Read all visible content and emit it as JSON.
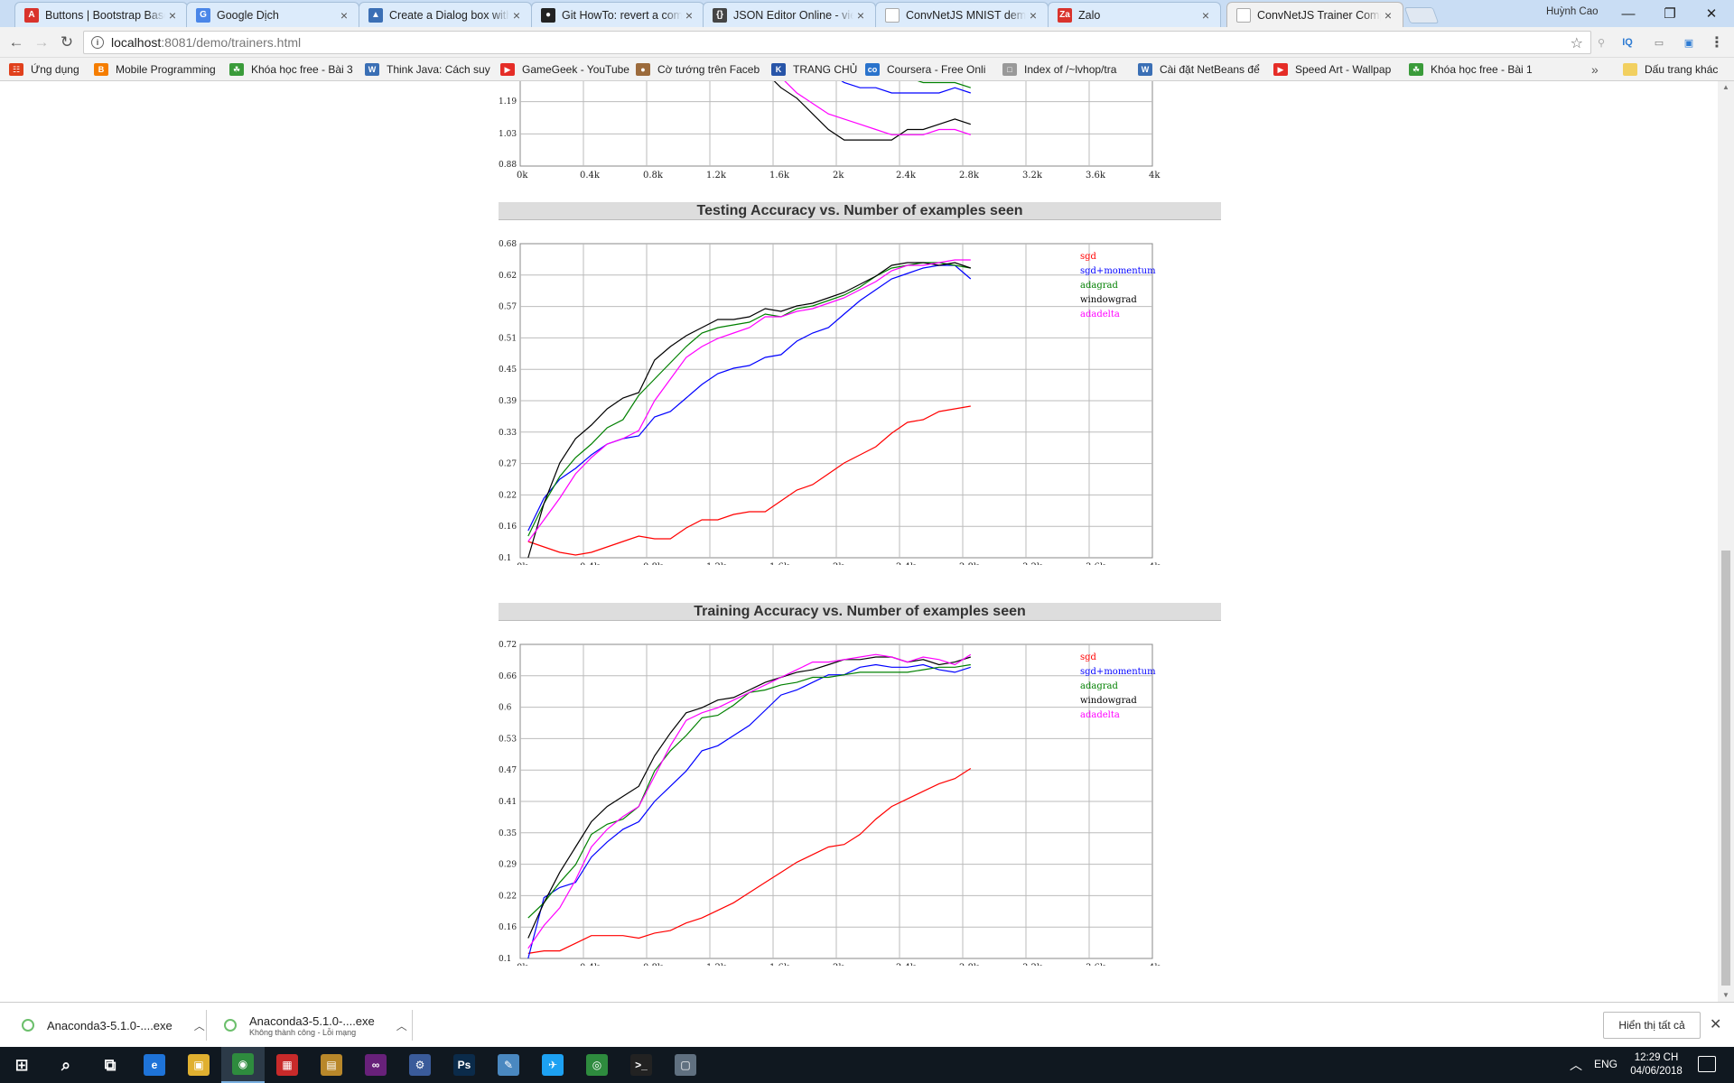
{
  "browser": {
    "tabs": [
      {
        "title": "Buttons | Bootstrap Based",
        "icon": "A",
        "color": "#d9332c"
      },
      {
        "title": "Google Dịch",
        "icon": "G",
        "color": "#4a86e8"
      },
      {
        "title": "Create a Dialog box with",
        "icon": "▲",
        "color": "#3b6fb5"
      },
      {
        "title": "Git HowTo: revert a comm",
        "icon": "●",
        "color": "#222222"
      },
      {
        "title": "JSON Editor Online - view",
        "icon": "{}",
        "color": "#444444"
      },
      {
        "title": "ConvNetJS MNIST demo",
        "icon": "",
        "color": "#ffffff"
      },
      {
        "title": "Zalo",
        "icon": "Za",
        "color": "#d9332c"
      },
      {
        "title": "ConvNetJS Trainer Comp",
        "icon": "",
        "color": "#ffffff"
      }
    ],
    "profile_name": "Huỳnh Cao",
    "url_host": "localhost",
    "url_rest": ":8081/demo/trainers.html",
    "bookmarks": [
      {
        "label": "Ứng dụng",
        "color": "#e0401c",
        "icon": "☷"
      },
      {
        "label": "Mobile Programming",
        "color": "#f57d00",
        "icon": "B"
      },
      {
        "label": "Khóa học free - Bài 3",
        "color": "#3a9b3a",
        "icon": "☘"
      },
      {
        "label": "Think Java: Cách suy",
        "color": "#3a6fb5",
        "icon": "W"
      },
      {
        "label": "GameGeek - YouTube",
        "color": "#e52d27",
        "icon": "▶"
      },
      {
        "label": "Cờ tướng trên Faceb",
        "color": "#9c6b3c",
        "icon": "●"
      },
      {
        "label": "TRANG CHỦ",
        "color": "#2855a8",
        "icon": "K"
      },
      {
        "label": "Coursera - Free Onli",
        "color": "#2a73cc",
        "icon": "co"
      },
      {
        "label": "Index of /~lvhop/tra",
        "color": "#999999",
        "icon": "□"
      },
      {
        "label": "Cài đặt NetBeans để",
        "color": "#3a6fb5",
        "icon": "W"
      },
      {
        "label": "Speed Art - Wallpap",
        "color": "#e52d27",
        "icon": "▶"
      },
      {
        "label": "Khóa học free - Bài 1",
        "color": "#3a9b3a",
        "icon": "☘"
      }
    ],
    "bookmarks_more": "»",
    "other_bookmarks": "Dấu trang khác"
  },
  "charts": {
    "legend": [
      {
        "label": "sgd",
        "color": "#ff0000"
      },
      {
        "label": "sgd+momentum",
        "color": "#0000ff"
      },
      {
        "label": "adagrad",
        "color": "#008000"
      },
      {
        "label": "windowgrad",
        "color": "#000000"
      },
      {
        "label": "adadelta",
        "color": "#ff00ff"
      }
    ],
    "x_ticks": [
      "0k",
      "0.4k",
      "0.8k",
      "1.2k",
      "1.6k",
      "2k",
      "2.4k",
      "2.8k",
      "3.2k",
      "3.6k",
      "4k"
    ],
    "loss": {
      "y_ticks": [
        "1.19",
        "1.03",
        "0.88"
      ]
    },
    "testing": {
      "title": "Testing Accuracy vs. Number of examples seen",
      "y_ticks": [
        "0.68",
        "0.62",
        "0.57",
        "0.51",
        "0.45",
        "0.39",
        "0.33",
        "0.27",
        "0.22",
        "0.16",
        "0.1"
      ]
    },
    "training": {
      "title": "Training Accuracy vs. Number of examples seen",
      "y_ticks": [
        "0.72",
        "0.66",
        "0.6",
        "0.53",
        "0.47",
        "0.41",
        "0.35",
        "0.29",
        "0.22",
        "0.16",
        "0.1"
      ]
    }
  },
  "chart_data": [
    {
      "type": "line",
      "title": "",
      "xlabel": "",
      "ylabel": "",
      "xlim": [
        0,
        4000
      ],
      "ylim": [
        0.88,
        1.25
      ],
      "x": [
        1050,
        1150,
        1250,
        1350,
        1450,
        1550,
        1650,
        1750,
        1850,
        1950,
        2050,
        2150,
        2250,
        2350,
        2450,
        2550,
        2650,
        2750,
        2850
      ],
      "series": [
        {
          "name": "sgd+momentum",
          "values": [
            1.25,
            1.24,
            1.2,
            1.18,
            1.16,
            1.14,
            1.12,
            1.1,
            1.08,
            1.06,
            1.04,
            1.03,
            1.03,
            1.02,
            1.02,
            1.02,
            1.02,
            1.03,
            1.02
          ]
        },
        {
          "name": "adagrad",
          "values": [
            1.25,
            1.24,
            1.21,
            1.19,
            1.17,
            1.15,
            1.13,
            1.11,
            1.1,
            1.08,
            1.06,
            1.05,
            1.05,
            1.05,
            1.05,
            1.04,
            1.04,
            1.04,
            1.03
          ]
        },
        {
          "name": "windowgrad",
          "values": [
            1.2,
            1.18,
            1.15,
            1.12,
            1.09,
            1.06,
            1.03,
            1.01,
            0.98,
            0.95,
            0.93,
            0.93,
            0.93,
            0.93,
            0.95,
            0.95,
            0.96,
            0.97,
            0.96
          ]
        },
        {
          "name": "adadelta",
          "values": [
            1.25,
            1.21,
            1.18,
            1.15,
            1.12,
            1.09,
            1.05,
            1.02,
            1.0,
            0.98,
            0.97,
            0.96,
            0.95,
            0.94,
            0.94,
            0.94,
            0.95,
            0.95,
            0.94
          ]
        }
      ]
    },
    {
      "type": "line",
      "title": "Testing Accuracy vs. Number of examples seen",
      "xlabel": "",
      "ylabel": "",
      "xlim": [
        0,
        4000
      ],
      "ylim": [
        0.1,
        0.68
      ],
      "x": [
        50,
        150,
        250,
        350,
        450,
        550,
        650,
        750,
        850,
        950,
        1050,
        1150,
        1250,
        1350,
        1450,
        1550,
        1650,
        1750,
        1850,
        1950,
        2050,
        2150,
        2250,
        2350,
        2450,
        2550,
        2650,
        2750,
        2850
      ],
      "series": [
        {
          "name": "sgd",
          "values": [
            0.13,
            0.12,
            0.11,
            0.105,
            0.11,
            0.12,
            0.13,
            0.14,
            0.135,
            0.135,
            0.155,
            0.17,
            0.17,
            0.18,
            0.185,
            0.185,
            0.205,
            0.225,
            0.235,
            0.255,
            0.275,
            0.29,
            0.305,
            0.33,
            0.35,
            0.355,
            0.37,
            0.375,
            0.38
          ]
        },
        {
          "name": "sgd+momentum",
          "values": [
            0.15,
            0.21,
            0.245,
            0.265,
            0.29,
            0.31,
            0.32,
            0.325,
            0.36,
            0.37,
            0.395,
            0.42,
            0.44,
            0.45,
            0.455,
            0.47,
            0.475,
            0.5,
            0.515,
            0.525,
            0.55,
            0.575,
            0.595,
            0.615,
            0.625,
            0.635,
            0.64,
            0.64,
            0.615
          ]
        },
        {
          "name": "adagrad",
          "values": [
            0.14,
            0.2,
            0.25,
            0.285,
            0.31,
            0.34,
            0.355,
            0.4,
            0.43,
            0.46,
            0.49,
            0.515,
            0.525,
            0.53,
            0.535,
            0.55,
            0.545,
            0.56,
            0.565,
            0.575,
            0.585,
            0.6,
            0.62,
            0.635,
            0.64,
            0.645,
            0.645,
            0.64,
            0.635
          ]
        },
        {
          "name": "windowgrad",
          "values": [
            0.1,
            0.2,
            0.275,
            0.32,
            0.345,
            0.375,
            0.395,
            0.405,
            0.465,
            0.49,
            0.51,
            0.525,
            0.54,
            0.54,
            0.545,
            0.56,
            0.555,
            0.565,
            0.57,
            0.58,
            0.59,
            0.605,
            0.62,
            0.64,
            0.645,
            0.645,
            0.64,
            0.645,
            0.635
          ]
        },
        {
          "name": "adadelta",
          "values": [
            0.13,
            0.17,
            0.21,
            0.255,
            0.285,
            0.31,
            0.32,
            0.335,
            0.39,
            0.43,
            0.47,
            0.49,
            0.505,
            0.515,
            0.525,
            0.545,
            0.545,
            0.555,
            0.56,
            0.57,
            0.58,
            0.595,
            0.61,
            0.63,
            0.64,
            0.64,
            0.645,
            0.65,
            0.65
          ]
        }
      ]
    },
    {
      "type": "line",
      "title": "Training Accuracy vs. Number of examples seen",
      "xlabel": "",
      "ylabel": "",
      "xlim": [
        0,
        4000
      ],
      "ylim": [
        0.1,
        0.72
      ],
      "x": [
        50,
        150,
        250,
        350,
        450,
        550,
        650,
        750,
        850,
        950,
        1050,
        1150,
        1250,
        1350,
        1450,
        1550,
        1650,
        1750,
        1850,
        1950,
        2050,
        2150,
        2250,
        2350,
        2450,
        2550,
        2650,
        2750,
        2850
      ],
      "series": [
        {
          "name": "sgd",
          "values": [
            0.11,
            0.115,
            0.115,
            0.13,
            0.145,
            0.145,
            0.145,
            0.14,
            0.15,
            0.155,
            0.17,
            0.18,
            0.195,
            0.21,
            0.23,
            0.25,
            0.27,
            0.29,
            0.305,
            0.32,
            0.325,
            0.345,
            0.375,
            0.4,
            0.415,
            0.43,
            0.445,
            0.455,
            0.475
          ]
        },
        {
          "name": "sgd+momentum",
          "values": [
            0.1,
            0.22,
            0.24,
            0.25,
            0.3,
            0.33,
            0.355,
            0.37,
            0.41,
            0.44,
            0.47,
            0.51,
            0.52,
            0.54,
            0.56,
            0.59,
            0.62,
            0.63,
            0.645,
            0.66,
            0.66,
            0.675,
            0.68,
            0.675,
            0.675,
            0.68,
            0.67,
            0.665,
            0.675
          ]
        },
        {
          "name": "adagrad",
          "values": [
            0.18,
            0.21,
            0.25,
            0.285,
            0.345,
            0.365,
            0.375,
            0.4,
            0.47,
            0.51,
            0.54,
            0.575,
            0.58,
            0.6,
            0.625,
            0.63,
            0.64,
            0.645,
            0.655,
            0.655,
            0.66,
            0.665,
            0.665,
            0.665,
            0.665,
            0.67,
            0.675,
            0.675,
            0.68
          ]
        },
        {
          "name": "windowgrad",
          "values": [
            0.14,
            0.21,
            0.27,
            0.32,
            0.37,
            0.4,
            0.42,
            0.44,
            0.5,
            0.545,
            0.585,
            0.595,
            0.61,
            0.615,
            0.63,
            0.645,
            0.655,
            0.665,
            0.67,
            0.68,
            0.69,
            0.69,
            0.695,
            0.695,
            0.685,
            0.69,
            0.68,
            0.685,
            0.695
          ]
        },
        {
          "name": "adadelta",
          "values": [
            0.12,
            0.165,
            0.2,
            0.255,
            0.32,
            0.355,
            0.38,
            0.4,
            0.46,
            0.52,
            0.57,
            0.585,
            0.595,
            0.61,
            0.625,
            0.64,
            0.655,
            0.67,
            0.685,
            0.685,
            0.69,
            0.695,
            0.7,
            0.695,
            0.685,
            0.695,
            0.69,
            0.68,
            0.7
          ]
        }
      ]
    }
  ],
  "downloads": {
    "items": [
      {
        "name": "Anaconda3-5.1.0-....exe",
        "status": ""
      },
      {
        "name": "Anaconda3-5.1.0-....exe",
        "status": "Không thành công - Lỗi mạng"
      }
    ],
    "show_all": "Hiển thị tất cả"
  },
  "taskbar": {
    "apps": [
      {
        "name": "start-icon",
        "glyph": "⊞",
        "color": "#101820"
      },
      {
        "name": "search-icon",
        "glyph": "⌕",
        "color": "#101820"
      },
      {
        "name": "task-view-icon",
        "glyph": "⧉",
        "color": "#101820"
      },
      {
        "name": "edge-icon",
        "glyph": "e",
        "color": "#1e73d8"
      },
      {
        "name": "file-explorer-icon",
        "glyph": "▣",
        "color": "#e0b030"
      },
      {
        "name": "chrome-icon",
        "glyph": "◉",
        "color": "#2e8b3e"
      },
      {
        "name": "paint-app-icon",
        "glyph": "▦",
        "color": "#c82a2a"
      },
      {
        "name": "archive-app-icon",
        "glyph": "▤",
        "color": "#b8872a"
      },
      {
        "name": "visual-studio-icon",
        "glyph": "∞",
        "color": "#68217a"
      },
      {
        "name": "installer-app-icon",
        "glyph": "⚙",
        "color": "#3a5b9a"
      },
      {
        "name": "photoshop-icon",
        "glyph": "Ps",
        "color": "#0b2b4a"
      },
      {
        "name": "notes-app-icon",
        "glyph": "✎",
        "color": "#4a88c0"
      },
      {
        "name": "twitter-app-icon",
        "glyph": "✈",
        "color": "#1da1f2"
      },
      {
        "name": "globe-app-icon",
        "glyph": "◎",
        "color": "#2e8b3e"
      },
      {
        "name": "terminal-icon",
        "glyph": ">_",
        "color": "#222222"
      },
      {
        "name": "remote-app-icon",
        "glyph": "▢",
        "color": "#607080"
      }
    ],
    "lang": "ENG",
    "time": "12:29 CH",
    "date": "04/06/2018"
  }
}
